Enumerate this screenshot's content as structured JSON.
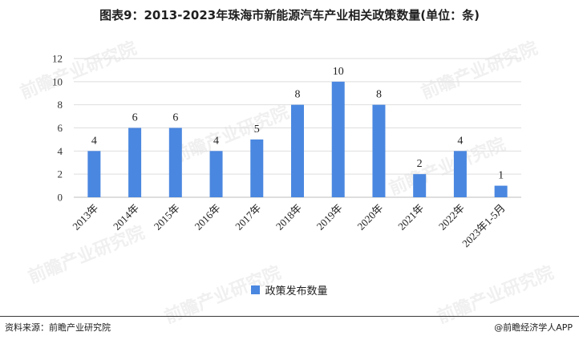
{
  "title": "图表9：2013-2023年珠海市新能源汽车产业相关政策数量(单位：条)",
  "chart_data": {
    "type": "bar",
    "categories": [
      "2013年",
      "2014年",
      "2015年",
      "2016年",
      "2017年",
      "2018年",
      "2019年",
      "2020年",
      "2021年",
      "2022年",
      "2023年1-5月"
    ],
    "series": [
      {
        "name": "政策发布数量",
        "values": [
          4,
          6,
          6,
          4,
          5,
          8,
          10,
          8,
          2,
          4,
          1
        ]
      }
    ],
    "yticks": [
      0,
      2,
      4,
      6,
      8,
      10,
      12
    ],
    "ylim": [
      0,
      12
    ],
    "grid": true,
    "legend_position": "bottom",
    "bar_color": "#4a87e0"
  },
  "watermark": "前瞻产业研究院",
  "footer": {
    "source": "资料来源：前瞻产业研究院",
    "credit": "@前瞻经济学人APP"
  }
}
